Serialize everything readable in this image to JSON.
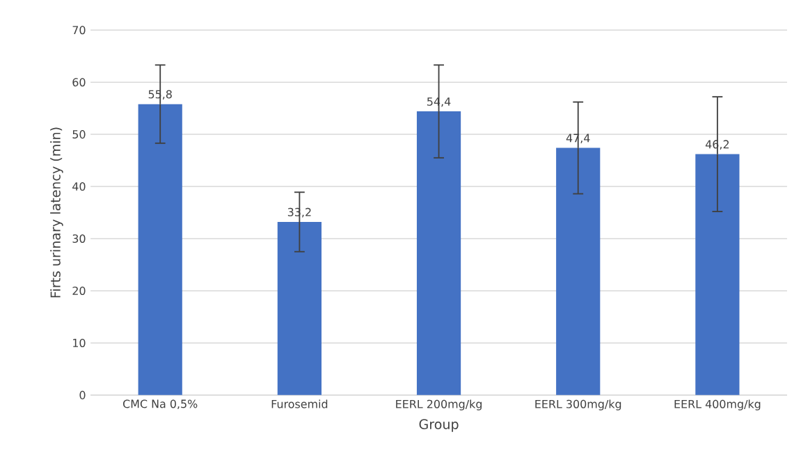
{
  "chart_data": {
    "type": "bar",
    "xlabel": "Group",
    "ylabel": "Firts urinary latency (min)",
    "categories": [
      "CMC Na 0,5%",
      "Furosemid",
      "EERL 200mg/kg",
      "EERL 300mg/kg",
      "EERL 400mg/kg"
    ],
    "values": [
      55.8,
      33.2,
      54.4,
      47.4,
      46.2
    ],
    "value_labels": [
      "55,8",
      "33,2",
      "54,4",
      "47,4",
      "46,2"
    ],
    "errors": [
      7.5,
      5.7,
      8.9,
      8.8,
      11.0
    ],
    "color": "#4472c4",
    "ylim": [
      0,
      70
    ],
    "yticks": [
      0,
      10,
      20,
      30,
      40,
      50,
      60,
      70
    ],
    "grid": "y"
  }
}
